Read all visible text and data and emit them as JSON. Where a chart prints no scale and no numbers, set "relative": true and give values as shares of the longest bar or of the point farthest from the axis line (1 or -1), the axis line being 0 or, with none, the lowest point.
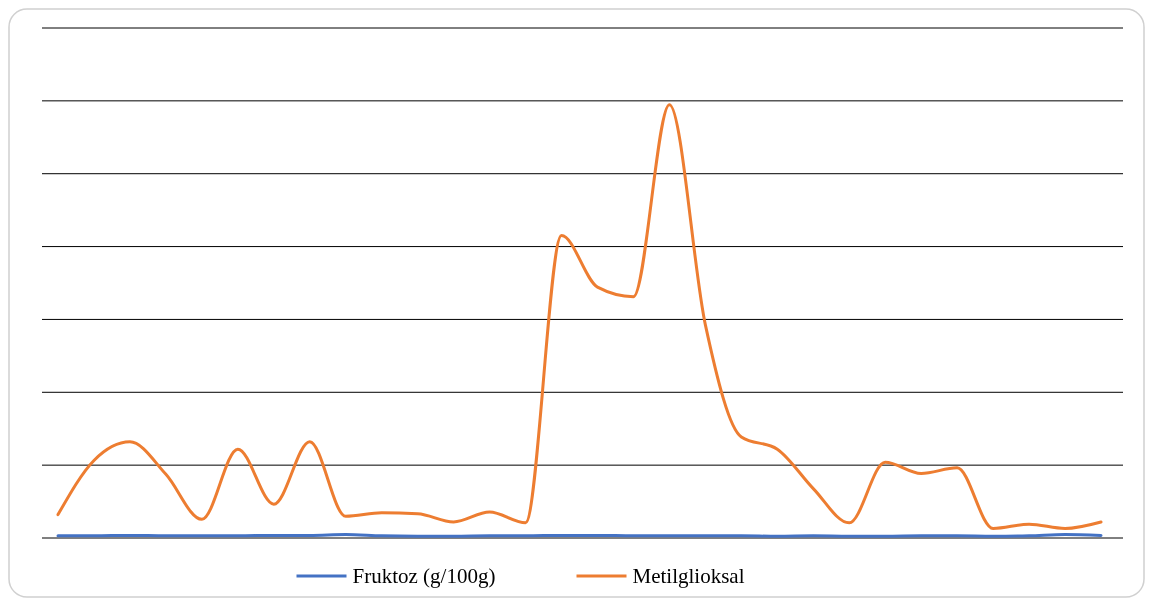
{
  "chart_data": {
    "type": "line",
    "relative": true,
    "grid": "y",
    "legend": "bottom",
    "categories": [
      null,
      null,
      null,
      null,
      null,
      null,
      null,
      null,
      null,
      null,
      null,
      null,
      null,
      null,
      null,
      null,
      null,
      null,
      null,
      null,
      null,
      null,
      null,
      null,
      null,
      null,
      null,
      null,
      null,
      null
    ],
    "series": [
      {
        "name": "Fruktoz (g/100g)",
        "color": "#4472c4",
        "values": [
          0.005,
          0.005,
          0.006,
          0.005,
          0.005,
          0.005,
          0.006,
          0.006,
          0.008,
          0.005,
          0.004,
          0.004,
          0.005,
          0.005,
          0.006,
          0.006,
          0.005,
          0.005,
          0.005,
          0.005,
          0.004,
          0.005,
          0.004,
          0.004,
          0.005,
          0.005,
          0.004,
          0.005,
          0.008,
          0.006
        ]
      },
      {
        "name": "Metilglioksal",
        "color": "#ed7d31",
        "values": [
          0.054,
          0.179,
          0.222,
          0.147,
          0.043,
          0.205,
          0.078,
          0.222,
          0.05,
          0.058,
          0.056,
          0.037,
          0.06,
          0.035,
          0.698,
          0.579,
          0.557,
          1.0,
          0.492,
          0.233,
          0.205,
          0.114,
          0.035,
          0.175,
          0.149,
          0.162,
          0.022,
          0.032,
          0.022,
          0.037
        ]
      }
    ]
  }
}
